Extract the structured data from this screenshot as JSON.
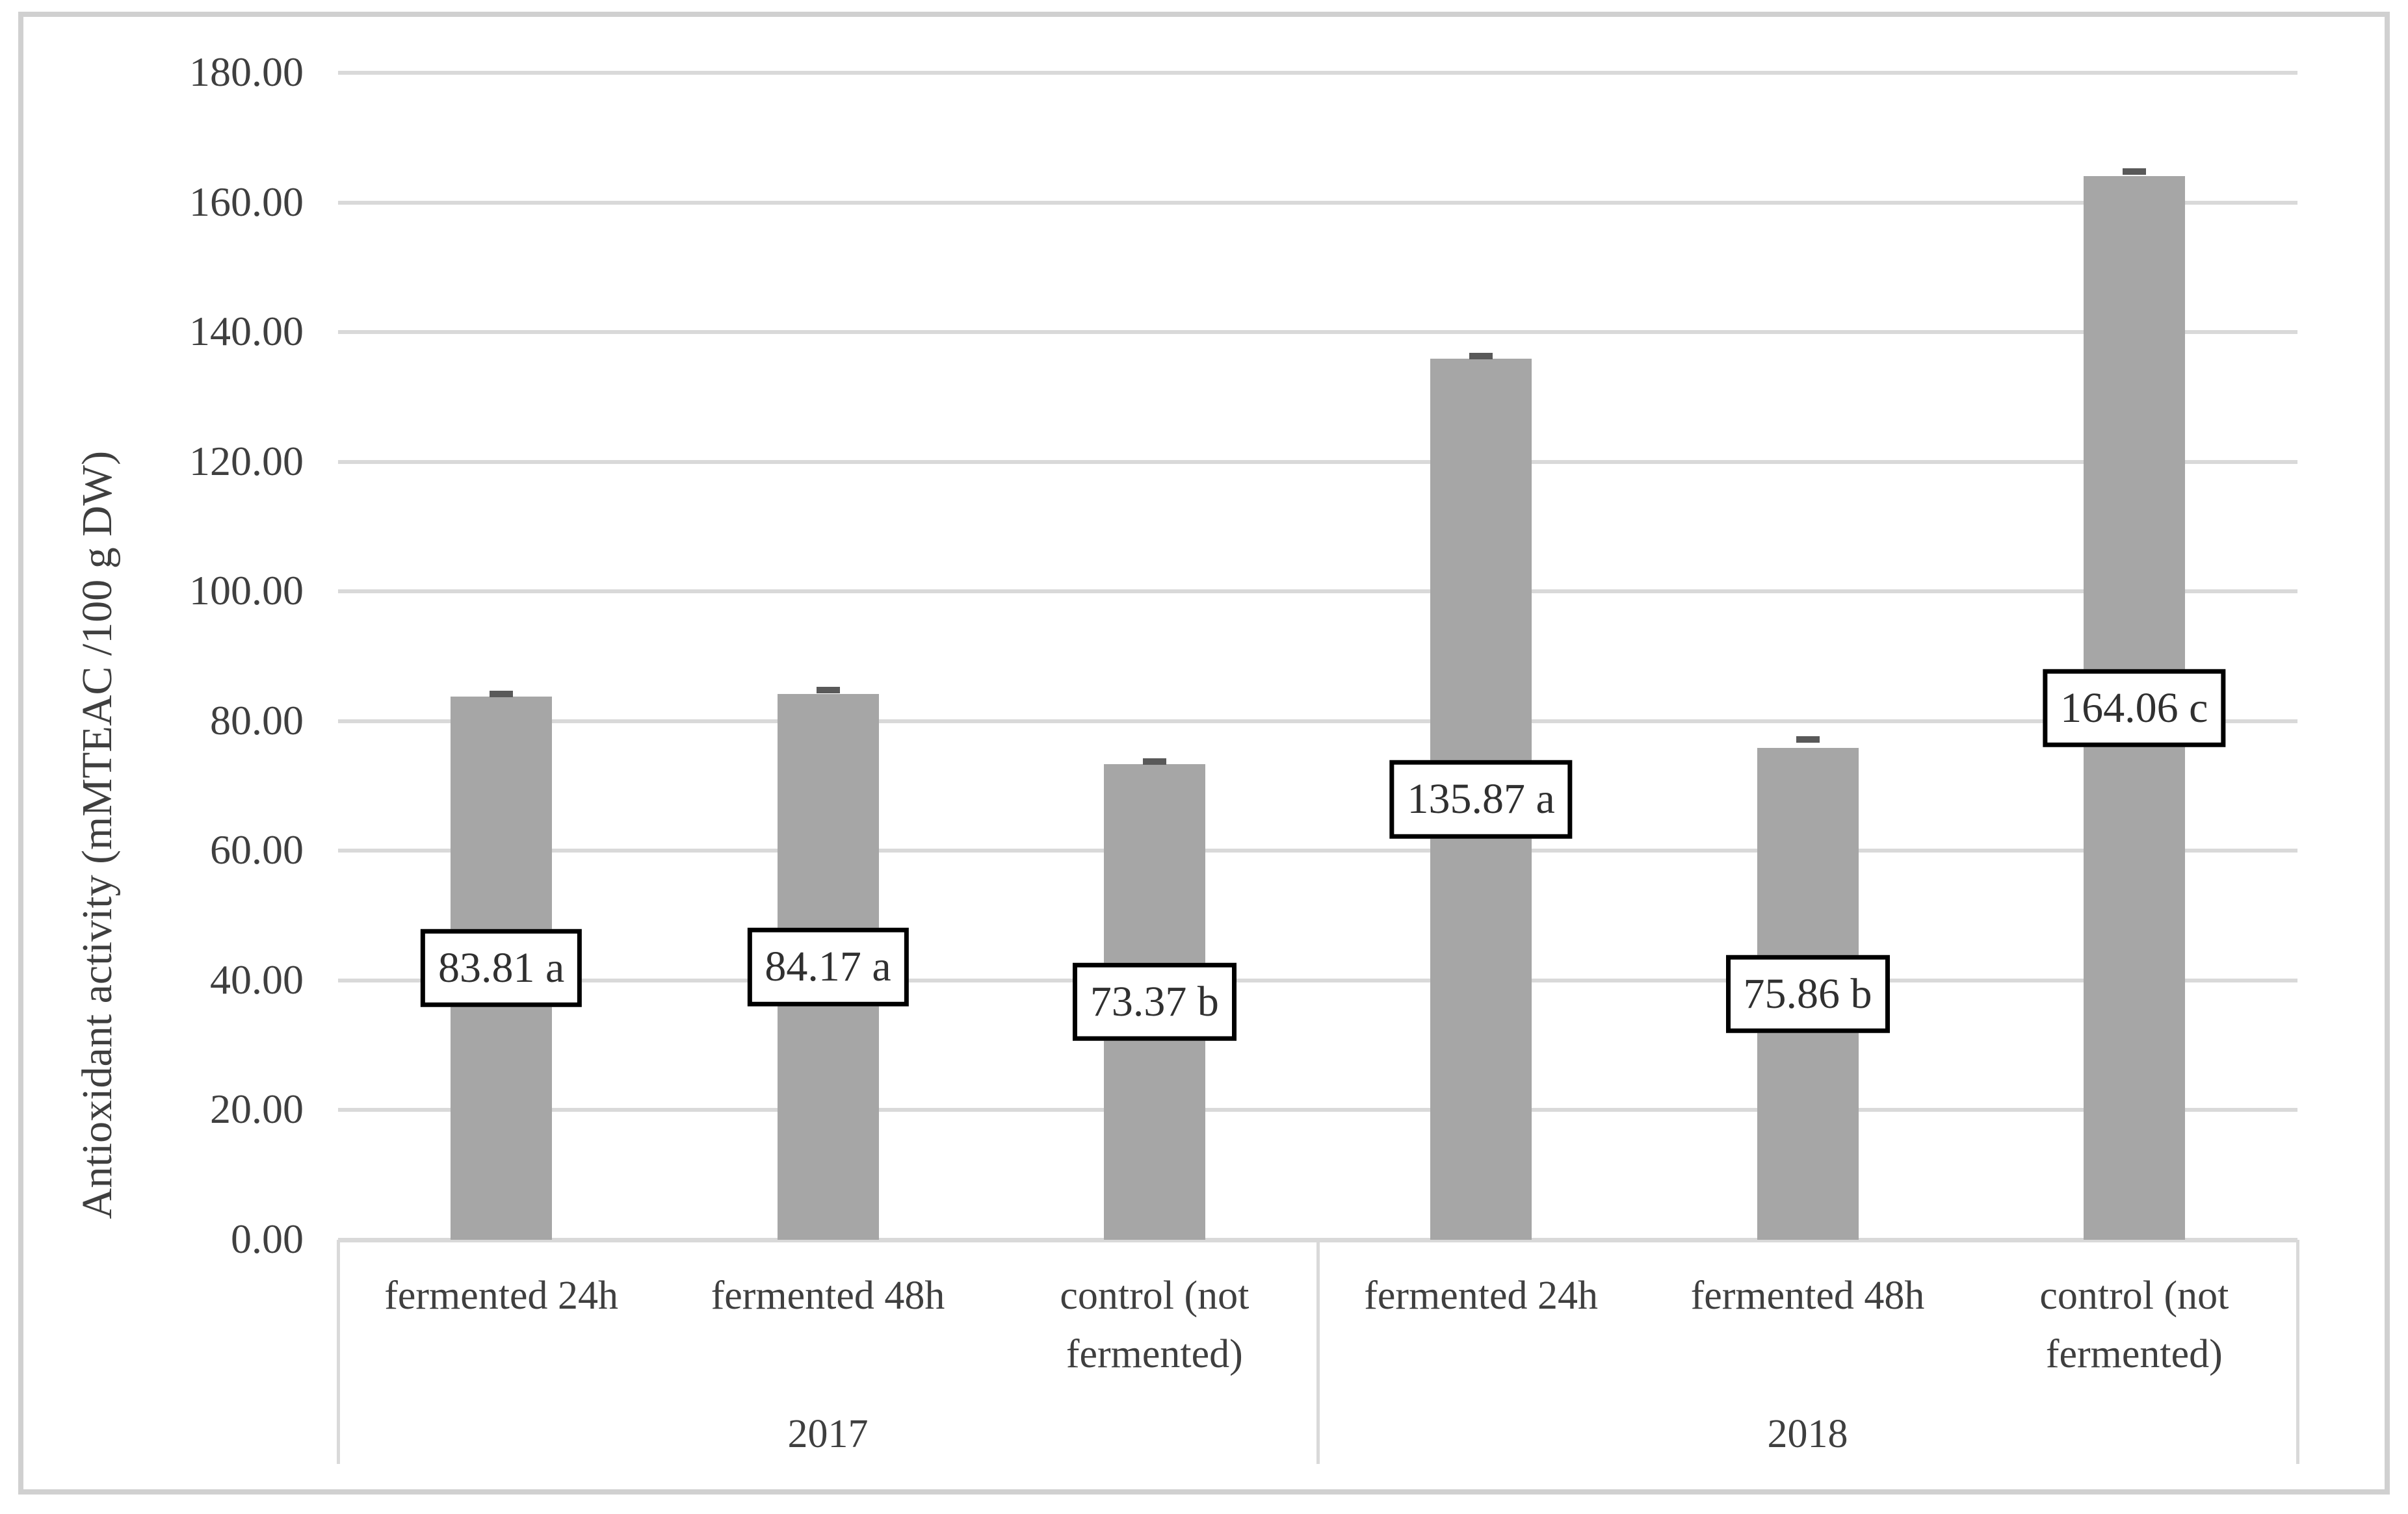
{
  "chart_data": {
    "type": "bar",
    "title": "",
    "ylabel": "Antioxidant activity (mMTEAC /100 g DW)",
    "xlabel": "",
    "ylim": [
      0,
      180
    ],
    "ytick_step": 20,
    "yticks": [
      "0.00",
      "20.00",
      "40.00",
      "60.00",
      "80.00",
      "100.00",
      "120.00",
      "140.00",
      "160.00",
      "180.00"
    ],
    "grid": true,
    "legend": "none",
    "bar_color": "#a6a6a6",
    "error_cap_color": "#595959",
    "label_box_style": "white box, thick black border, centered at half bar height",
    "groups": [
      {
        "year": "2017",
        "categories": [
          "fermented 24h",
          "fermented 48h",
          "control (not fermented)"
        ],
        "values": [
          83.81,
          84.17,
          73.37
        ],
        "data_labels": [
          "83.81 a",
          "84.17 a",
          "73.37 b"
        ],
        "errors": [
          0.4,
          0.6,
          0.4
        ]
      },
      {
        "year": "2018",
        "categories": [
          "fermented 24h",
          "fermented 48h",
          "control (not fermented)"
        ],
        "values": [
          135.87,
          75.86,
          164.06
        ],
        "data_labels": [
          "135.87 a",
          "75.86 b",
          "164.06 c"
        ],
        "errors": [
          0.4,
          1.3,
          0.7
        ]
      }
    ]
  },
  "colors": {
    "bar": "#a6a6a6",
    "error_cap": "#595959",
    "gridline": "#d9d9d9",
    "frame": "#d0d0d0",
    "text": "#3f3f3f",
    "label_box_border": "#000000"
  }
}
